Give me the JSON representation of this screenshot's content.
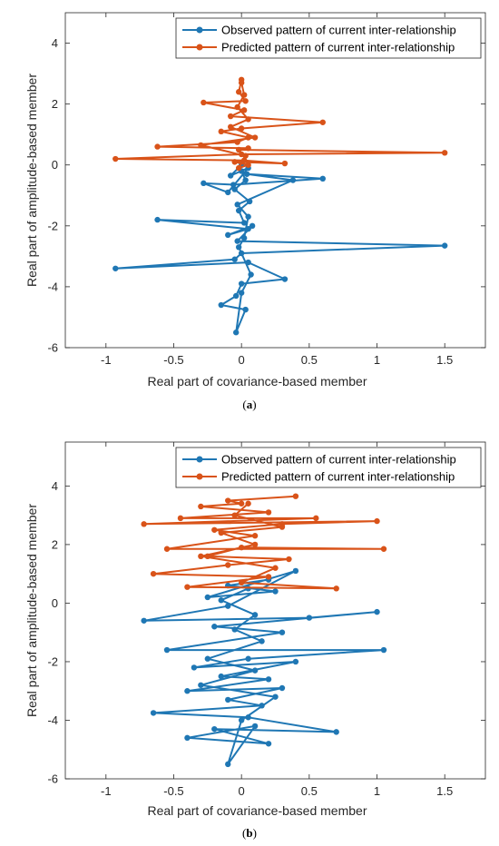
{
  "colors": {
    "observed": "#1f77b4",
    "predicted": "#d95319",
    "axis": "#262626"
  },
  "chart_data": [
    {
      "type": "line",
      "caption": "(a)",
      "xlabel": "Real part of covariance-based member",
      "ylabel": "Real part of amplitude-based member",
      "xlim": [
        -1.3,
        1.8
      ],
      "ylim": [
        -6,
        5
      ],
      "xticks": [
        -1,
        -0.5,
        0,
        0.5,
        1,
        1.5
      ],
      "xtick_labels": [
        "-1",
        "-0.5",
        "0",
        "0.5",
        "1",
        "1.5"
      ],
      "yticks": [
        -6,
        -4,
        -2,
        0,
        2,
        4
      ],
      "ytick_labels": [
        "-6",
        "-4",
        "-2",
        "0",
        "2",
        "4"
      ],
      "grid": false,
      "legend_position": "top-right",
      "series": [
        {
          "name": "Observed pattern of current inter-relationship",
          "color": "#1f77b4",
          "marker": "circle",
          "points": [
            [
              0.0,
              -0.2
            ],
            [
              0.03,
              -0.5
            ],
            [
              -0.05,
              -0.8
            ],
            [
              0.06,
              -1.2
            ],
            [
              -0.02,
              -1.5
            ],
            [
              0.02,
              -1.9
            ],
            [
              -0.62,
              -1.8
            ],
            [
              0.05,
              -2.1
            ],
            [
              -0.1,
              -2.3
            ],
            [
              0.08,
              -2.0
            ],
            [
              -0.03,
              -2.5
            ],
            [
              1.5,
              -2.65
            ],
            [
              0.0,
              -2.9
            ],
            [
              -0.05,
              -3.1
            ],
            [
              -0.93,
              -3.4
            ],
            [
              0.05,
              -3.2
            ],
            [
              0.32,
              -3.75
            ],
            [
              0.0,
              -3.9
            ],
            [
              -0.04,
              -4.3
            ],
            [
              -0.15,
              -4.6
            ],
            [
              0.03,
              -4.75
            ],
            [
              -0.04,
              -5.5
            ],
            [
              0.0,
              -4.2
            ],
            [
              0.07,
              -3.6
            ],
            [
              -0.02,
              -2.7
            ],
            [
              0.02,
              -2.4
            ],
            [
              0.05,
              -1.7
            ],
            [
              -0.03,
              -1.3
            ],
            [
              0.38,
              -0.5
            ],
            [
              0.04,
              -0.3
            ],
            [
              0.6,
              -0.45
            ],
            [
              -0.06,
              -0.65
            ],
            [
              -0.28,
              -0.6
            ],
            [
              -0.1,
              -0.9
            ],
            [
              0.05,
              -0.1
            ],
            [
              -0.08,
              -0.35
            ],
            [
              0.0,
              0.0
            ]
          ]
        },
        {
          "name": "Predicted pattern of current inter-relationship",
          "color": "#d95319",
          "marker": "circle",
          "points": [
            [
              0.0,
              2.8
            ],
            [
              -0.02,
              2.4
            ],
            [
              0.03,
              2.1
            ],
            [
              -0.28,
              2.05
            ],
            [
              0.02,
              1.8
            ],
            [
              -0.08,
              1.6
            ],
            [
              0.6,
              1.4
            ],
            [
              0.0,
              1.2
            ],
            [
              -0.15,
              1.1
            ],
            [
              0.05,
              0.9
            ],
            [
              -0.03,
              0.75
            ],
            [
              -0.62,
              0.6
            ],
            [
              0.05,
              0.55
            ],
            [
              -0.02,
              0.5
            ],
            [
              1.5,
              0.4
            ],
            [
              0.0,
              0.35
            ],
            [
              -0.93,
              0.2
            ],
            [
              0.02,
              0.15
            ],
            [
              0.32,
              0.05
            ],
            [
              -0.05,
              0.1
            ],
            [
              0.05,
              0.0
            ],
            [
              -0.02,
              -0.1
            ],
            [
              0.03,
              0.3
            ],
            [
              -0.3,
              0.65
            ],
            [
              0.1,
              0.9
            ],
            [
              -0.08,
              1.25
            ],
            [
              0.05,
              1.5
            ],
            [
              -0.03,
              1.9
            ],
            [
              0.02,
              2.3
            ],
            [
              0.0,
              2.7
            ]
          ]
        }
      ]
    },
    {
      "type": "line",
      "caption": "(b)",
      "xlabel": "Real part of covariance-based member",
      "ylabel": "Real part of amplitude-based member",
      "xlim": [
        -1.3,
        1.8
      ],
      "ylim": [
        -6,
        5.5
      ],
      "xticks": [
        -1,
        -0.5,
        0,
        0.5,
        1,
        1.5
      ],
      "xtick_labels": [
        "-1",
        "-0.5",
        "0",
        "0.5",
        "1",
        "1.5"
      ],
      "yticks": [
        -6,
        -4,
        -2,
        0,
        2,
        4
      ],
      "ytick_labels": [
        "-6",
        "-4",
        "-2",
        "0",
        "2",
        "4"
      ],
      "grid": false,
      "legend_position": "top-right",
      "series": [
        {
          "name": "Observed pattern of current inter-relationship",
          "color": "#1f77b4",
          "marker": "circle",
          "points": [
            [
              0.2,
              0.8
            ],
            [
              -0.1,
              0.6
            ],
            [
              0.25,
              0.4
            ],
            [
              -0.25,
              0.2
            ],
            [
              0.4,
              1.1
            ],
            [
              -0.1,
              -0.1
            ],
            [
              -0.72,
              -0.6
            ],
            [
              0.5,
              -0.5
            ],
            [
              1.0,
              -0.3
            ],
            [
              -0.2,
              -0.8
            ],
            [
              0.3,
              -1.0
            ],
            [
              -0.55,
              -1.6
            ],
            [
              1.05,
              -1.6
            ],
            [
              0.05,
              -1.9
            ],
            [
              -0.35,
              -2.2
            ],
            [
              0.4,
              -2.0
            ],
            [
              -0.15,
              -2.5
            ],
            [
              0.2,
              -2.6
            ],
            [
              -0.4,
              -3.0
            ],
            [
              0.3,
              -2.9
            ],
            [
              -0.1,
              -3.3
            ],
            [
              0.15,
              -3.5
            ],
            [
              -0.65,
              -3.75
            ],
            [
              0.05,
              -3.9
            ],
            [
              0.7,
              -4.4
            ],
            [
              -0.2,
              -4.3
            ],
            [
              0.2,
              -4.8
            ],
            [
              -0.4,
              -4.6
            ],
            [
              0.1,
              -4.2
            ],
            [
              -0.1,
              -5.5
            ],
            [
              0.0,
              -4.0
            ],
            [
              0.25,
              -3.2
            ],
            [
              -0.3,
              -2.8
            ],
            [
              0.1,
              -2.3
            ],
            [
              -0.25,
              -1.9
            ],
            [
              0.15,
              -1.3
            ],
            [
              -0.05,
              -0.9
            ],
            [
              0.1,
              -0.4
            ],
            [
              -0.15,
              0.1
            ],
            [
              0.05,
              0.5
            ]
          ]
        },
        {
          "name": "Predicted pattern of current inter-relationship",
          "color": "#d95319",
          "marker": "circle",
          "points": [
            [
              0.4,
              3.65
            ],
            [
              -0.1,
              3.5
            ],
            [
              0.0,
              3.4
            ],
            [
              -0.3,
              3.3
            ],
            [
              0.2,
              3.1
            ],
            [
              -0.45,
              2.9
            ],
            [
              0.55,
              2.9
            ],
            [
              -0.72,
              2.7
            ],
            [
              1.0,
              2.8
            ],
            [
              0.3,
              2.7
            ],
            [
              -0.2,
              2.5
            ],
            [
              0.1,
              2.3
            ],
            [
              -0.55,
              1.85
            ],
            [
              1.05,
              1.85
            ],
            [
              0.0,
              1.9
            ],
            [
              -0.25,
              1.6
            ],
            [
              0.35,
              1.5
            ],
            [
              -0.1,
              1.3
            ],
            [
              -0.65,
              1.0
            ],
            [
              0.2,
              0.9
            ],
            [
              -0.4,
              0.55
            ],
            [
              0.7,
              0.5
            ],
            [
              0.0,
              0.7
            ],
            [
              0.25,
              1.2
            ],
            [
              -0.3,
              1.6
            ],
            [
              0.1,
              2.0
            ],
            [
              -0.15,
              2.4
            ],
            [
              0.3,
              2.6
            ],
            [
              -0.05,
              3.0
            ],
            [
              0.05,
              3.4
            ]
          ]
        }
      ]
    }
  ]
}
